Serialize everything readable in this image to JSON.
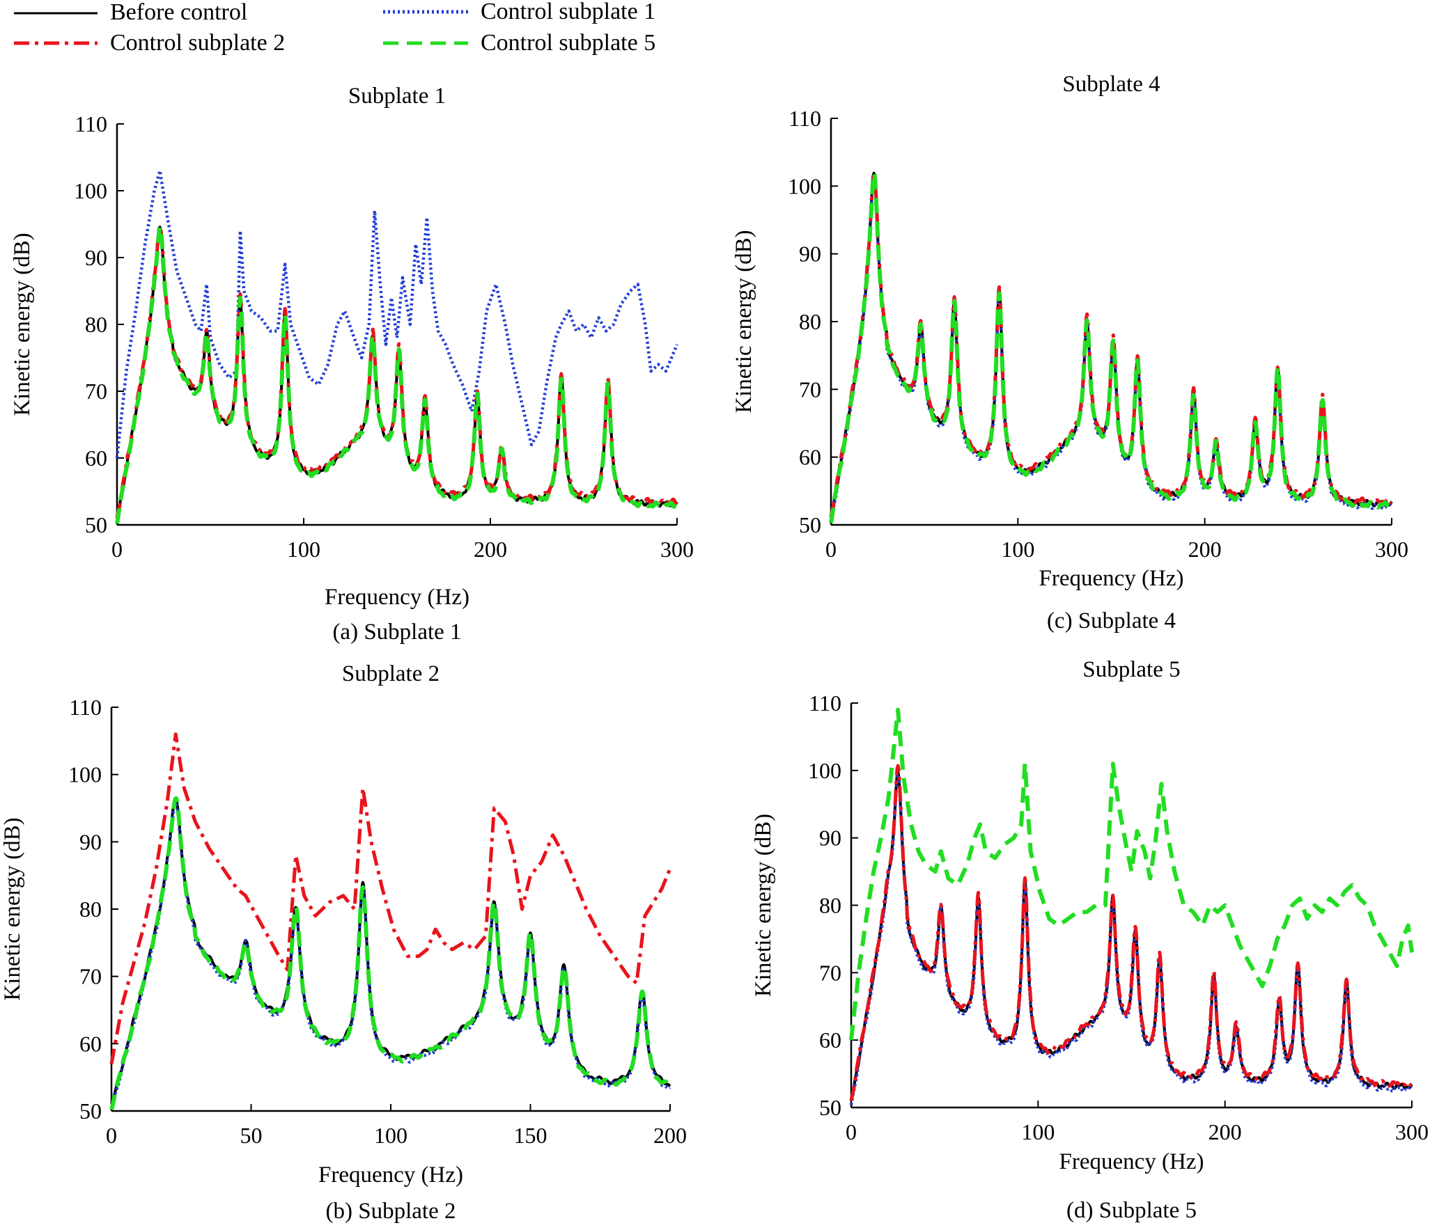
{
  "legend": {
    "entries": [
      {
        "key": "before",
        "label": "Before control",
        "color": "#000000",
        "dash": "solid"
      },
      {
        "key": "c1",
        "label": "Control subplate 1",
        "color": "#1f3bd6",
        "dash": "dotted"
      },
      {
        "key": "c2",
        "label": "Control subplate 2",
        "color": "#e8141c",
        "dash": "dashdot"
      },
      {
        "key": "c5",
        "label": "Control subplate 5",
        "color": "#22dd22",
        "dash": "dashed"
      }
    ]
  },
  "chart_data": [
    {
      "type": "line",
      "id": "a",
      "title": "Subplate 1",
      "caption": "(a) Subplate 1",
      "xlabel": "Frequency (Hz)",
      "ylabel": "Kinetic energy (dB)",
      "xlim": [
        0,
        300
      ],
      "ylim": [
        50,
        110
      ],
      "xticks": [
        "0",
        "100",
        "200",
        "300"
      ],
      "yticks": [
        "50",
        "60",
        "70",
        "80",
        "90",
        "100",
        "110"
      ],
      "elevated_series": "c1",
      "series": {
        "base_peaks": [
          [
            23,
            96
          ],
          [
            48,
            80
          ],
          [
            66,
            86
          ],
          [
            90,
            84
          ],
          [
            137,
            80
          ],
          [
            151,
            78
          ],
          [
            165,
            70
          ],
          [
            193,
            71
          ],
          [
            206,
            62
          ],
          [
            238,
            74
          ],
          [
            263,
            73
          ]
        ],
        "c1": [
          [
            0,
            60
          ],
          [
            5,
            73
          ],
          [
            10,
            82
          ],
          [
            15,
            92
          ],
          [
            20,
            100
          ],
          [
            23,
            103
          ],
          [
            27,
            96
          ],
          [
            32,
            88
          ],
          [
            37,
            84
          ],
          [
            42,
            80
          ],
          [
            45,
            79
          ],
          [
            48,
            86
          ],
          [
            50,
            78
          ],
          [
            55,
            74
          ],
          [
            60,
            72
          ],
          [
            64,
            73
          ],
          [
            66,
            94
          ],
          [
            68,
            85
          ],
          [
            72,
            82
          ],
          [
            77,
            81
          ],
          [
            82,
            79
          ],
          [
            86,
            79
          ],
          [
            90,
            89
          ],
          [
            93,
            80
          ],
          [
            98,
            76
          ],
          [
            103,
            72
          ],
          [
            108,
            71
          ],
          [
            113,
            74
          ],
          [
            118,
            80
          ],
          [
            122,
            82
          ],
          [
            127,
            78
          ],
          [
            131,
            75
          ],
          [
            135,
            80
          ],
          [
            138,
            97
          ],
          [
            141,
            86
          ],
          [
            144,
            77
          ],
          [
            147,
            84
          ],
          [
            150,
            78
          ],
          [
            153,
            87
          ],
          [
            157,
            80
          ],
          [
            160,
            92
          ],
          [
            163,
            86
          ],
          [
            166,
            96
          ],
          [
            169,
            85
          ],
          [
            172,
            79
          ],
          [
            176,
            77
          ],
          [
            180,
            74
          ],
          [
            185,
            71
          ],
          [
            190,
            67
          ],
          [
            194,
            73
          ],
          [
            198,
            82
          ],
          [
            203,
            86
          ],
          [
            208,
            80
          ],
          [
            212,
            74
          ],
          [
            217,
            68
          ],
          [
            222,
            62
          ],
          [
            226,
            64
          ],
          [
            230,
            71
          ],
          [
            235,
            78
          ],
          [
            238,
            80
          ],
          [
            242,
            82
          ],
          [
            246,
            79
          ],
          [
            250,
            80
          ],
          [
            254,
            78
          ],
          [
            258,
            81
          ],
          [
            262,
            79
          ],
          [
            266,
            80
          ],
          [
            270,
            83
          ],
          [
            275,
            85
          ],
          [
            279,
            86
          ],
          [
            283,
            80
          ],
          [
            286,
            73
          ],
          [
            290,
            74
          ],
          [
            294,
            73
          ],
          [
            297,
            75
          ],
          [
            300,
            77
          ]
        ]
      }
    },
    {
      "type": "line",
      "id": "b",
      "title": "Subplate 2",
      "caption": "(b) Subplate 2",
      "xlabel": "Frequency (Hz)",
      "ylabel": "Kinetic energy (dB)",
      "xlim": [
        0,
        200
      ],
      "ylim": [
        50,
        110
      ],
      "xticks": [
        "0",
        "50",
        "100",
        "150",
        "200"
      ],
      "yticks": [
        "50",
        "60",
        "70",
        "80",
        "90",
        "100",
        "110"
      ],
      "elevated_series": "c2",
      "series": {
        "base_peaks": [
          [
            23,
            98
          ],
          [
            48,
            76
          ],
          [
            66,
            82
          ],
          [
            90,
            86
          ],
          [
            137,
            83
          ],
          [
            150,
            78
          ],
          [
            162,
            73
          ],
          [
            190,
            69
          ]
        ],
        "c2": [
          [
            0,
            57
          ],
          [
            4,
            66
          ],
          [
            8,
            72
          ],
          [
            12,
            78
          ],
          [
            16,
            86
          ],
          [
            20,
            96
          ],
          [
            23,
            106
          ],
          [
            26,
            98
          ],
          [
            30,
            93
          ],
          [
            35,
            89
          ],
          [
            40,
            86
          ],
          [
            45,
            83
          ],
          [
            48,
            82
          ],
          [
            52,
            79
          ],
          [
            56,
            76
          ],
          [
            60,
            73
          ],
          [
            63,
            71
          ],
          [
            66,
            88
          ],
          [
            69,
            82
          ],
          [
            73,
            79
          ],
          [
            78,
            81
          ],
          [
            83,
            82
          ],
          [
            87,
            80
          ],
          [
            90,
            98
          ],
          [
            93,
            90
          ],
          [
            97,
            83
          ],
          [
            101,
            77
          ],
          [
            106,
            73
          ],
          [
            110,
            73
          ],
          [
            113,
            74
          ],
          [
            116,
            77
          ],
          [
            119,
            75
          ],
          [
            122,
            74
          ],
          [
            126,
            75
          ],
          [
            130,
            74
          ],
          [
            134,
            76
          ],
          [
            137,
            95
          ],
          [
            141,
            93
          ],
          [
            144,
            88
          ],
          [
            147,
            80
          ],
          [
            150,
            85
          ],
          [
            154,
            87
          ],
          [
            158,
            91
          ],
          [
            162,
            88
          ],
          [
            166,
            84
          ],
          [
            170,
            80
          ],
          [
            175,
            76
          ],
          [
            180,
            73
          ],
          [
            185,
            70
          ],
          [
            188,
            69
          ],
          [
            191,
            79
          ],
          [
            194,
            81
          ],
          [
            197,
            83
          ],
          [
            200,
            86
          ]
        ]
      }
    },
    {
      "type": "line",
      "id": "c",
      "title": "Subplate 4",
      "caption": "(c) Subplate 4",
      "xlabel": "Frequency (Hz)",
      "ylabel": "Kinetic energy (dB)",
      "xlim": [
        0,
        300
      ],
      "ylim": [
        50,
        110
      ],
      "xticks": [
        "0",
        "100",
        "200",
        "300"
      ],
      "yticks": [
        "50",
        "60",
        "70",
        "80",
        "90",
        "100",
        "110"
      ],
      "elevated_series": null,
      "series": {
        "base_peaks": [
          [
            23,
            104
          ],
          [
            48,
            81
          ],
          [
            66,
            85
          ],
          [
            90,
            87
          ],
          [
            137,
            82
          ],
          [
            151,
            79
          ],
          [
            164,
            76
          ],
          [
            194,
            71
          ],
          [
            206,
            63
          ],
          [
            227,
            66
          ],
          [
            239,
            75
          ],
          [
            263,
            70
          ]
        ]
      }
    },
    {
      "type": "line",
      "id": "d",
      "title": "Subplate 5",
      "caption": "(d) Subplate 5",
      "xlabel": "Frequency (Hz)",
      "ylabel": "Kinetic energy (dB)",
      "xlim": [
        0,
        300
      ],
      "ylim": [
        50,
        110
      ],
      "xticks": [
        "0",
        "100",
        "200",
        "300"
      ],
      "yticks": [
        "50",
        "60",
        "70",
        "80",
        "90",
        "100",
        "110"
      ],
      "elevated_series": "c5",
      "series": {
        "base_peaks": [
          [
            25,
            102
          ],
          [
            48,
            81
          ],
          [
            68,
            83
          ],
          [
            93,
            86
          ],
          [
            140,
            83
          ],
          [
            152,
            78
          ],
          [
            165,
            74
          ],
          [
            194,
            71
          ],
          [
            206,
            63
          ],
          [
            229,
            67
          ],
          [
            239,
            73
          ],
          [
            265,
            70
          ]
        ],
        "c5": [
          [
            0,
            60
          ],
          [
            4,
            70
          ],
          [
            8,
            78
          ],
          [
            12,
            85
          ],
          [
            16,
            90
          ],
          [
            20,
            96
          ],
          [
            25,
            109
          ],
          [
            28,
            99
          ],
          [
            32,
            92
          ],
          [
            36,
            88
          ],
          [
            40,
            86
          ],
          [
            45,
            85
          ],
          [
            48,
            88
          ],
          [
            52,
            84
          ],
          [
            57,
            83
          ],
          [
            62,
            86
          ],
          [
            66,
            90
          ],
          [
            69,
            92
          ],
          [
            72,
            88
          ],
          [
            77,
            87
          ],
          [
            82,
            89
          ],
          [
            87,
            90
          ],
          [
            91,
            92
          ],
          [
            93,
            101
          ],
          [
            96,
            88
          ],
          [
            101,
            82
          ],
          [
            106,
            78
          ],
          [
            111,
            77
          ],
          [
            116,
            78
          ],
          [
            121,
            79
          ],
          [
            126,
            79
          ],
          [
            131,
            80
          ],
          [
            136,
            80
          ],
          [
            140,
            101
          ],
          [
            143,
            95
          ],
          [
            147,
            89
          ],
          [
            150,
            85
          ],
          [
            153,
            91
          ],
          [
            157,
            88
          ],
          [
            160,
            84
          ],
          [
            163,
            90
          ],
          [
            166,
            98
          ],
          [
            169,
            91
          ],
          [
            173,
            85
          ],
          [
            178,
            80
          ],
          [
            183,
            79
          ],
          [
            188,
            77
          ],
          [
            192,
            80
          ],
          [
            196,
            79
          ],
          [
            200,
            80
          ],
          [
            204,
            77
          ],
          [
            208,
            74
          ],
          [
            212,
            72
          ],
          [
            216,
            70
          ],
          [
            220,
            68
          ],
          [
            224,
            71
          ],
          [
            228,
            75
          ],
          [
            232,
            77
          ],
          [
            236,
            80
          ],
          [
            240,
            81
          ],
          [
            244,
            78
          ],
          [
            248,
            80
          ],
          [
            252,
            79
          ],
          [
            256,
            81
          ],
          [
            260,
            80
          ],
          [
            264,
            82
          ],
          [
            268,
            83
          ],
          [
            272,
            81
          ],
          [
            276,
            80
          ],
          [
            280,
            77
          ],
          [
            284,
            75
          ],
          [
            288,
            73
          ],
          [
            292,
            71
          ],
          [
            295,
            75
          ],
          [
            298,
            77
          ],
          [
            300,
            73
          ]
        ]
      }
    }
  ]
}
